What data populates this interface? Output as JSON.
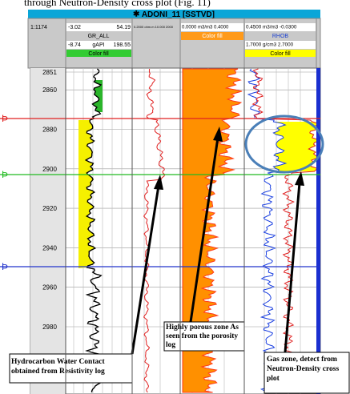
{
  "caption_fragment": "through Neutron-Density cross plot (Fig. 11)",
  "header": {
    "title": "ADONI_11 [SSTVD]",
    "scale": "1:1174",
    "gr": {
      "top_min": "-3.02",
      "top_max": "54.19",
      "name": "GR_ALL",
      "min": "-8.74",
      "unit": "gAPI",
      "max": "198.55",
      "fill": "Color fill"
    },
    "resistivity": {
      "range": "0.2000 ohm.m 10.000 2000"
    },
    "porosity": {
      "range": "0.0000 m3/m3 0.4000",
      "fill": "Color fill"
    },
    "density": {
      "nphi_range": "0.4500 m3/m3 -0.0300",
      "name": "RHOB",
      "range": "1.7000 g/cm3 2.7000",
      "fill": "Color fill"
    }
  },
  "depth_ticks": [
    2851,
    2860,
    2880,
    2900,
    2920,
    2940,
    2960,
    2980
  ],
  "annotations": {
    "contact": "Hydrocarbon Water Contact obtained from Resistivity log",
    "porous": "Highly porous zone As seen from the porosity log",
    "gas": "Gas zone, detect from Neutron-Density cross plot"
  }
}
